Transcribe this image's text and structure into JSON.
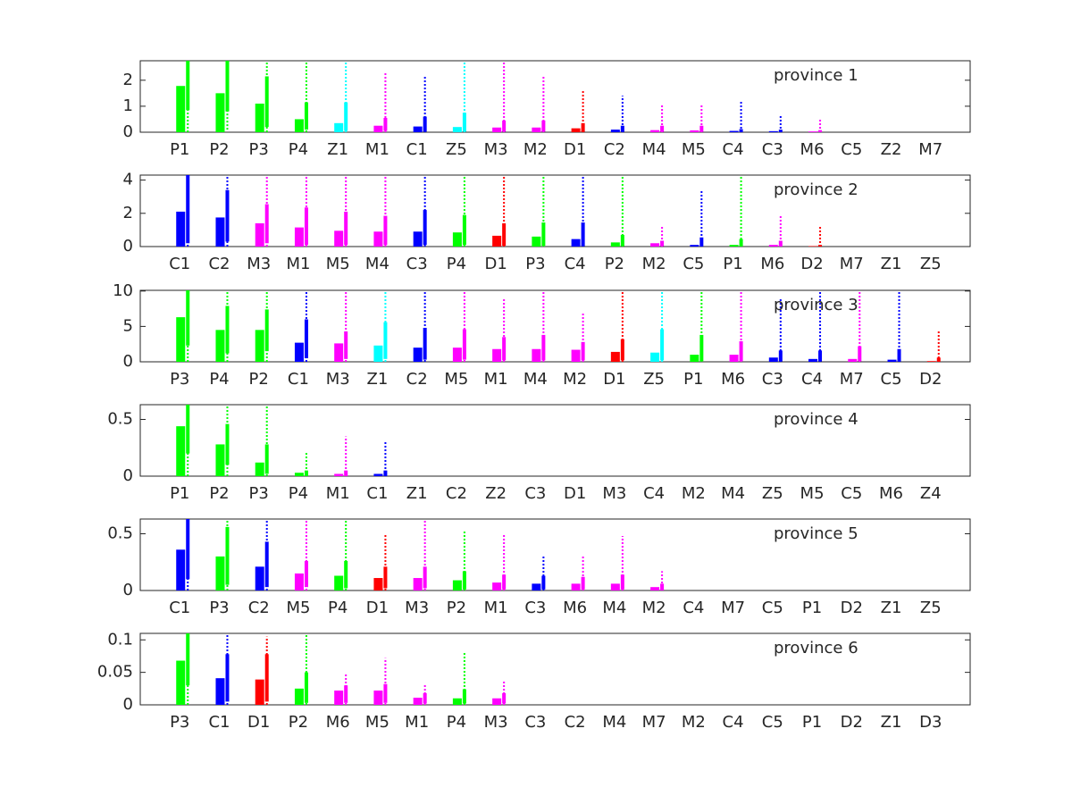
{
  "chart_data": [
    {
      "type": "bar",
      "annotation": "province 1",
      "ylim": [
        0,
        2.75
      ],
      "yticks": [
        0,
        1,
        2
      ],
      "categories": [
        "P1",
        "P2",
        "P3",
        "P4",
        "Z1",
        "M1",
        "C1",
        "Z5",
        "M3",
        "M2",
        "D1",
        "C2",
        "M4",
        "M5",
        "C4",
        "C3",
        "M6",
        "C5",
        "Z2",
        "M7"
      ],
      "values": [
        1.78,
        1.5,
        1.1,
        0.5,
        0.35,
        0.25,
        0.22,
        0.2,
        0.18,
        0.18,
        0.15,
        0.1,
        0.08,
        0.07,
        0.05,
        0.04,
        0.03,
        0,
        0,
        0
      ],
      "intervals": [
        [
          0.85,
          2.75
        ],
        [
          0.8,
          2.75
        ],
        [
          0.2,
          2.15
        ],
        [
          0.1,
          1.15
        ],
        [
          0.05,
          1.15
        ],
        [
          0.05,
          0.55
        ],
        [
          0.02,
          0.6
        ],
        [
          0.02,
          0.75
        ],
        [
          0.02,
          0.45
        ],
        [
          0.02,
          0.45
        ],
        [
          0.01,
          0.35
        ],
        [
          0.01,
          0.25
        ],
        [
          0.01,
          0.25
        ],
        [
          0.01,
          0.25
        ],
        [
          0,
          0.12
        ],
        [
          0,
          0.1
        ],
        [
          0,
          0.08
        ],
        null,
        null,
        null
      ],
      "whiskers": [
        [
          0,
          2.75
        ],
        [
          0.1,
          2.75
        ],
        [
          0,
          2.75
        ],
        [
          0,
          2.75
        ],
        [
          0,
          2.75
        ],
        [
          0,
          2.3
        ],
        [
          0,
          2.2
        ],
        [
          0,
          2.75
        ],
        [
          0,
          2.75
        ],
        [
          0,
          2.2
        ],
        [
          0,
          1.6
        ],
        [
          0,
          1.4
        ],
        [
          0,
          1.05
        ],
        [
          0,
          1.05
        ],
        [
          0,
          1.2
        ],
        [
          0,
          0.65
        ],
        [
          0,
          0.5
        ],
        null,
        null,
        null
      ],
      "colors": [
        "#00ff00",
        "#00ff00",
        "#00ff00",
        "#00ff00",
        "#00ffff",
        "#ff00ff",
        "#0000ff",
        "#00ffff",
        "#ff00ff",
        "#ff00ff",
        "#ff0000",
        "#0000ff",
        "#ff00ff",
        "#ff00ff",
        "#0000ff",
        "#0000ff",
        "#ff00ff",
        "#0000ff",
        "#00ffff",
        "#ff00ff"
      ]
    },
    {
      "type": "bar",
      "annotation": "province 2",
      "ylim": [
        0,
        4.3
      ],
      "yticks": [
        0,
        2,
        4
      ],
      "categories": [
        "C1",
        "C2",
        "M3",
        "M1",
        "M5",
        "M4",
        "C3",
        "P4",
        "D1",
        "P3",
        "C4",
        "P2",
        "M2",
        "C5",
        "P1",
        "M6",
        "D2",
        "M7",
        "Z1",
        "Z5"
      ],
      "values": [
        2.1,
        1.75,
        1.4,
        1.15,
        0.95,
        0.9,
        0.9,
        0.85,
        0.65,
        0.6,
        0.45,
        0.25,
        0.2,
        0.1,
        0.1,
        0.1,
        0.03,
        0,
        0,
        0
      ],
      "intervals": [
        [
          0.2,
          4.3
        ],
        [
          0.3,
          3.4
        ],
        [
          0.2,
          2.55
        ],
        [
          0.1,
          2.35
        ],
        [
          0.1,
          2.1
        ],
        [
          0.1,
          1.85
        ],
        [
          0.1,
          2.2
        ],
        [
          0.1,
          1.9
        ],
        [
          0.05,
          1.4
        ],
        [
          0.05,
          1.45
        ],
        [
          0.02,
          1.45
        ],
        [
          0.02,
          0.7
        ],
        [
          0.02,
          0.35
        ],
        [
          0,
          0.55
        ],
        [
          0,
          0.45
        ],
        [
          0,
          0.35
        ],
        [
          0,
          0.1
        ],
        null,
        null,
        null
      ],
      "whiskers": [
        [
          0,
          4.3
        ],
        [
          0,
          4.3
        ],
        [
          0,
          4.3
        ],
        [
          0,
          4.3
        ],
        [
          0,
          4.3
        ],
        [
          0,
          4.3
        ],
        [
          0,
          4.3
        ],
        [
          0,
          4.3
        ],
        [
          0,
          4.3
        ],
        [
          0,
          4.3
        ],
        [
          0,
          4.3
        ],
        [
          0,
          4.3
        ],
        [
          0,
          1.2
        ],
        [
          0,
          3.4
        ],
        [
          0,
          4.3
        ],
        [
          0,
          1.9
        ],
        [
          0,
          1.2
        ],
        null,
        null,
        null
      ],
      "colors": [
        "#0000ff",
        "#0000ff",
        "#ff00ff",
        "#ff00ff",
        "#ff00ff",
        "#ff00ff",
        "#0000ff",
        "#00ff00",
        "#ff0000",
        "#00ff00",
        "#0000ff",
        "#00ff00",
        "#ff00ff",
        "#0000ff",
        "#00ff00",
        "#ff00ff",
        "#ff0000",
        "#ff00ff",
        "#00ffff",
        "#00ffff"
      ]
    },
    {
      "type": "bar",
      "annotation": "province 3",
      "ylim": [
        0,
        10.1
      ],
      "yticks": [
        0,
        5,
        10
      ],
      "categories": [
        "P3",
        "P4",
        "P2",
        "C1",
        "M3",
        "Z1",
        "C2",
        "M5",
        "M1",
        "M4",
        "M2",
        "D1",
        "Z5",
        "P1",
        "M6",
        "C3",
        "C4",
        "M7",
        "C5",
        "D2"
      ],
      "values": [
        6.3,
        4.5,
        4.5,
        2.7,
        2.6,
        2.3,
        2.0,
        2.0,
        1.8,
        1.8,
        1.7,
        1.4,
        1.3,
        1.0,
        1.0,
        0.6,
        0.4,
        0.4,
        0.3,
        0.1
      ],
      "intervals": [
        [
          2.3,
          10.1
        ],
        [
          1.2,
          7.9
        ],
        [
          1.5,
          7.4
        ],
        [
          0.5,
          6.0
        ],
        [
          0.4,
          4.3
        ],
        [
          0.4,
          5.6
        ],
        [
          0.3,
          4.8
        ],
        [
          0.3,
          4.6
        ],
        [
          0.2,
          3.5
        ],
        [
          0.2,
          3.8
        ],
        [
          0.2,
          2.8
        ],
        [
          0.2,
          3.2
        ],
        [
          0.2,
          4.6
        ],
        [
          0.1,
          3.8
        ],
        [
          0.1,
          2.9
        ],
        [
          0.05,
          1.6
        ],
        [
          0.05,
          1.6
        ],
        [
          0.05,
          2.2
        ],
        [
          0.02,
          1.8
        ],
        [
          0,
          0.6
        ]
      ],
      "whiskers": [
        [
          0,
          10.1
        ],
        [
          0,
          10.1
        ],
        [
          0,
          10.1
        ],
        [
          0,
          10.1
        ],
        [
          0,
          10.1
        ],
        [
          0,
          10.1
        ],
        [
          0,
          10.1
        ],
        [
          0,
          10.1
        ],
        [
          0,
          9
        ],
        [
          0,
          10.1
        ],
        [
          0,
          6.9
        ],
        [
          0,
          10.1
        ],
        [
          0,
          10.1
        ],
        [
          0,
          10.1
        ],
        [
          0,
          10.1
        ],
        [
          0,
          9
        ],
        [
          0,
          10.1
        ],
        [
          0,
          10.1
        ],
        [
          0,
          10.1
        ],
        [
          0,
          4.5
        ]
      ],
      "colors": [
        "#00ff00",
        "#00ff00",
        "#00ff00",
        "#0000ff",
        "#ff00ff",
        "#00ffff",
        "#0000ff",
        "#ff00ff",
        "#ff00ff",
        "#ff00ff",
        "#ff00ff",
        "#ff0000",
        "#00ffff",
        "#00ff00",
        "#ff00ff",
        "#0000ff",
        "#0000ff",
        "#ff00ff",
        "#0000ff",
        "#ff0000"
      ]
    },
    {
      "type": "bar",
      "annotation": "province 4",
      "ylim": [
        0,
        0.63
      ],
      "yticks": [
        0,
        0.5
      ],
      "categories": [
        "P1",
        "P2",
        "P3",
        "P4",
        "M1",
        "C1",
        "Z1",
        "C2",
        "Z2",
        "C3",
        "D1",
        "M3",
        "C4",
        "M2",
        "M4",
        "Z5",
        "M5",
        "C5",
        "M6",
        "Z4"
      ],
      "values": [
        0.44,
        0.28,
        0.12,
        0.03,
        0.02,
        0.02,
        0,
        0,
        0,
        0,
        0,
        0,
        0,
        0,
        0,
        0,
        0,
        0,
        0,
        0
      ],
      "intervals": [
        [
          0.2,
          0.63
        ],
        [
          0.1,
          0.46
        ],
        [
          0.02,
          0.28
        ],
        [
          0,
          0.05
        ],
        [
          0,
          0.05
        ],
        [
          0,
          0.05
        ],
        null,
        null,
        null,
        null,
        null,
        null,
        null,
        null,
        null,
        null,
        null,
        null,
        null,
        null
      ],
      "whiskers": [
        [
          0,
          0.63
        ],
        [
          0,
          0.63
        ],
        [
          0,
          0.63
        ],
        [
          0,
          0.22
        ],
        [
          0,
          0.35
        ],
        [
          0,
          0.3
        ],
        null,
        null,
        null,
        null,
        null,
        null,
        null,
        null,
        null,
        null,
        null,
        null,
        null,
        null
      ],
      "colors": [
        "#00ff00",
        "#00ff00",
        "#00ff00",
        "#00ff00",
        "#ff00ff",
        "#0000ff",
        "#00ffff",
        "#0000ff",
        "#00ffff",
        "#0000ff",
        "#ff0000",
        "#ff00ff",
        "#0000ff",
        "#ff00ff",
        "#ff00ff",
        "#00ffff",
        "#ff00ff",
        "#0000ff",
        "#ff00ff",
        "#00ffff"
      ]
    },
    {
      "type": "bar",
      "annotation": "province 5",
      "ylim": [
        0,
        0.63
      ],
      "yticks": [
        0,
        0.5
      ],
      "categories": [
        "C1",
        "P3",
        "C2",
        "M5",
        "P4",
        "D1",
        "M3",
        "P2",
        "M1",
        "C3",
        "M6",
        "M4",
        "M2",
        "C4",
        "M7",
        "C5",
        "P1",
        "D2",
        "Z1",
        "Z5"
      ],
      "values": [
        0.36,
        0.3,
        0.21,
        0.15,
        0.13,
        0.11,
        0.11,
        0.09,
        0.07,
        0.06,
        0.06,
        0.06,
        0.03,
        0,
        0,
        0,
        0,
        0,
        0,
        0
      ],
      "intervals": [
        [
          0.1,
          0.63
        ],
        [
          0.05,
          0.56
        ],
        [
          0.03,
          0.43
        ],
        [
          0.03,
          0.26
        ],
        [
          0.02,
          0.26
        ],
        [
          0.02,
          0.21
        ],
        [
          0.02,
          0.21
        ],
        [
          0.01,
          0.17
        ],
        [
          0.01,
          0.14
        ],
        [
          0.01,
          0.13
        ],
        [
          0.01,
          0.12
        ],
        [
          0.01,
          0.14
        ],
        [
          0,
          0.06
        ],
        null,
        null,
        null,
        null,
        null,
        null,
        null
      ],
      "whiskers": [
        [
          0,
          0.63
        ],
        [
          0,
          0.63
        ],
        [
          0,
          0.63
        ],
        [
          0,
          0.63
        ],
        [
          0,
          0.63
        ],
        [
          0,
          0.5
        ],
        [
          0,
          0.63
        ],
        [
          0,
          0.53
        ],
        [
          0,
          0.5
        ],
        [
          0,
          0.3
        ],
        [
          0,
          0.3
        ],
        [
          0,
          0.48
        ],
        [
          0,
          0.17
        ],
        null,
        null,
        null,
        null,
        null,
        null,
        null
      ],
      "colors": [
        "#0000ff",
        "#00ff00",
        "#0000ff",
        "#ff00ff",
        "#00ff00",
        "#ff0000",
        "#ff00ff",
        "#00ff00",
        "#ff00ff",
        "#0000ff",
        "#ff00ff",
        "#ff00ff",
        "#ff00ff",
        "#0000ff",
        "#ff00ff",
        "#0000ff",
        "#00ff00",
        "#ff0000",
        "#00ffff",
        "#00ffff"
      ]
    },
    {
      "type": "bar",
      "annotation": "province 6",
      "ylim": [
        0,
        0.11
      ],
      "yticks": [
        0,
        0.05,
        0.1
      ],
      "categories": [
        "P3",
        "C1",
        "D1",
        "P2",
        "M6",
        "M5",
        "M1",
        "P4",
        "M3",
        "C3",
        "C2",
        "M4",
        "M7",
        "M2",
        "C4",
        "C5",
        "P1",
        "D2",
        "Z1",
        "D3"
      ],
      "values": [
        0.068,
        0.041,
        0.039,
        0.025,
        0.022,
        0.022,
        0.011,
        0.01,
        0.01,
        0,
        0,
        0,
        0,
        0,
        0,
        0,
        0,
        0,
        0,
        0
      ],
      "intervals": [
        [
          0.03,
          0.11
        ],
        [
          0.005,
          0.078
        ],
        [
          0.005,
          0.078
        ],
        [
          0.003,
          0.05
        ],
        [
          0.003,
          0.03
        ],
        [
          0.003,
          0.032
        ],
        [
          0.002,
          0.018
        ],
        [
          0.002,
          0.024
        ],
        [
          0.002,
          0.018
        ],
        null,
        null,
        null,
        null,
        null,
        null,
        null,
        null,
        null,
        null,
        null
      ],
      "whiskers": [
        [
          0,
          0.11
        ],
        [
          0,
          0.11
        ],
        [
          0,
          0.105
        ],
        [
          0,
          0.11
        ],
        [
          0,
          0.047
        ],
        [
          0,
          0.072
        ],
        [
          0,
          0.032
        ],
        [
          0,
          0.082
        ],
        [
          0,
          0.036
        ],
        null,
        null,
        null,
        null,
        null,
        null,
        null,
        null,
        null,
        null,
        null
      ],
      "colors": [
        "#00ff00",
        "#0000ff",
        "#ff0000",
        "#00ff00",
        "#ff00ff",
        "#ff00ff",
        "#ff00ff",
        "#00ff00",
        "#ff00ff",
        "#0000ff",
        "#0000ff",
        "#ff00ff",
        "#ff00ff",
        "#ff00ff",
        "#0000ff",
        "#0000ff",
        "#00ff00",
        "#ff0000",
        "#00ffff",
        "#ff0000"
      ]
    }
  ]
}
